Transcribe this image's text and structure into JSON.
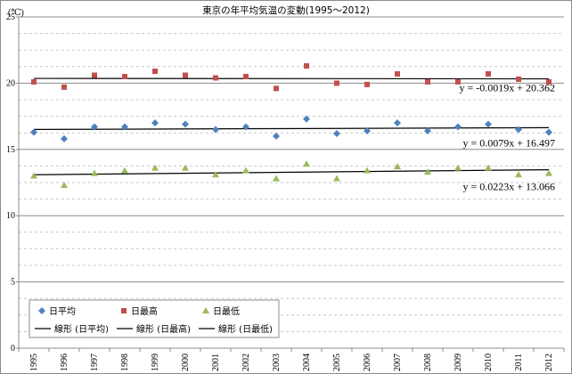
{
  "chart_data": {
    "type": "scatter",
    "title": "東京の年平均気温の変動(1995～2012)",
    "yunit": "(℃)",
    "xlabel": "",
    "ylabel": "",
    "ylim": [
      0,
      25
    ],
    "ymajor": 5,
    "yminor": 1.25,
    "ytick_labels": [
      "0",
      "5",
      "10",
      "15",
      "20",
      "25"
    ],
    "grid": "horizontal, major solid, minor dashed",
    "legend_position": "bottom-left",
    "categories": [
      "1995",
      "1996",
      "1997",
      "1998",
      "1999",
      "2000",
      "2001",
      "2002",
      "2003",
      "2004",
      "2005",
      "2006",
      "2007",
      "2008",
      "2009",
      "2010",
      "2011",
      "2012"
    ],
    "series": [
      {
        "name": "日平均",
        "marker": "diamond",
        "color": "#4f81bd",
        "values": [
          16.3,
          15.8,
          16.7,
          16.7,
          17.0,
          16.9,
          16.5,
          16.7,
          16.0,
          17.3,
          16.2,
          16.4,
          17.0,
          16.4,
          16.7,
          16.9,
          16.5,
          16.3
        ]
      },
      {
        "name": "日最高",
        "marker": "square",
        "color": "#c0504d",
        "values": [
          20.1,
          19.7,
          20.6,
          20.5,
          20.9,
          20.6,
          20.4,
          20.5,
          19.6,
          21.3,
          20.0,
          19.9,
          20.7,
          20.1,
          20.1,
          20.7,
          20.3,
          20.1
        ]
      },
      {
        "name": "日最低",
        "marker": "triangle",
        "color": "#9bbb59",
        "values": [
          13.0,
          12.3,
          13.2,
          13.4,
          13.6,
          13.6,
          13.1,
          13.4,
          12.8,
          13.9,
          12.8,
          13.4,
          13.7,
          13.3,
          13.6,
          13.6,
          13.1,
          13.2
        ]
      }
    ],
    "trendlines": [
      {
        "name": "線形 (日平均)",
        "series": "日平均",
        "slope": 0.0079,
        "intercept": 16.497,
        "equation": "y = 0.0079x + 16.497",
        "color": "#000000"
      },
      {
        "name": "線形 (日最高)",
        "series": "日最高",
        "slope": -0.0019,
        "intercept": 20.362,
        "equation": "y = -0.0019x + 20.362",
        "color": "#000000"
      },
      {
        "name": "線形 (日最低)",
        "series": "日最低",
        "slope": 0.0223,
        "intercept": 13.066,
        "equation": "y = 0.0223x + 13.066",
        "color": "#000000"
      }
    ]
  }
}
